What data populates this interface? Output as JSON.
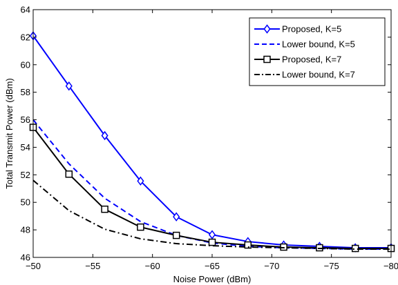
{
  "chart_data": {
    "type": "line",
    "xlabel": "Noise Power (dBm)",
    "ylabel": "Total Transmit Power (dBm)",
    "xlim": [
      -50,
      -80
    ],
    "ylim": [
      46,
      64
    ],
    "x_reversed": true,
    "xticks": [
      -50,
      -55,
      -60,
      -65,
      -70,
      -75,
      -80
    ],
    "yticks": [
      46,
      48,
      50,
      52,
      54,
      56,
      58,
      60,
      62,
      64
    ],
    "grid": false,
    "legend_position": "top-right",
    "series": [
      {
        "name": "Proposed, K=5",
        "color": "#0000ff",
        "line": "solid",
        "marker": "diamond",
        "x": [
          -50,
          -53,
          -56,
          -59,
          -62,
          -65,
          -68,
          -71,
          -74,
          -77,
          -80
        ],
        "y": [
          62.1,
          58.45,
          54.85,
          51.55,
          48.95,
          47.65,
          47.15,
          46.9,
          46.8,
          46.7,
          46.7
        ]
      },
      {
        "name": "Lower bound, K=5",
        "color": "#0000ff",
        "line": "dashed",
        "marker": "none",
        "x": [
          -50,
          -53,
          -56,
          -59,
          -62,
          -65,
          -68,
          -71,
          -74,
          -77,
          -80
        ],
        "y": [
          56.0,
          52.8,
          50.3,
          48.6,
          47.6,
          47.05,
          46.8,
          46.7,
          46.65,
          46.6,
          46.6
        ]
      },
      {
        "name": "Proposed, K=7",
        "color": "#000000",
        "line": "solid",
        "marker": "square",
        "x": [
          -50,
          -53,
          -56,
          -59,
          -62,
          -65,
          -68,
          -71,
          -74,
          -77,
          -80
        ],
        "y": [
          55.45,
          52.05,
          49.5,
          48.2,
          47.6,
          47.1,
          46.9,
          46.75,
          46.7,
          46.65,
          46.65
        ]
      },
      {
        "name": "Lower bound, K=7",
        "color": "#000000",
        "line": "dashdot",
        "marker": "none",
        "x": [
          -50,
          -53,
          -56,
          -59,
          -62,
          -65,
          -68,
          -71,
          -74,
          -77,
          -80
        ],
        "y": [
          51.6,
          49.4,
          48.05,
          47.35,
          47.0,
          46.85,
          46.75,
          46.7,
          46.65,
          46.6,
          46.6
        ]
      }
    ]
  }
}
